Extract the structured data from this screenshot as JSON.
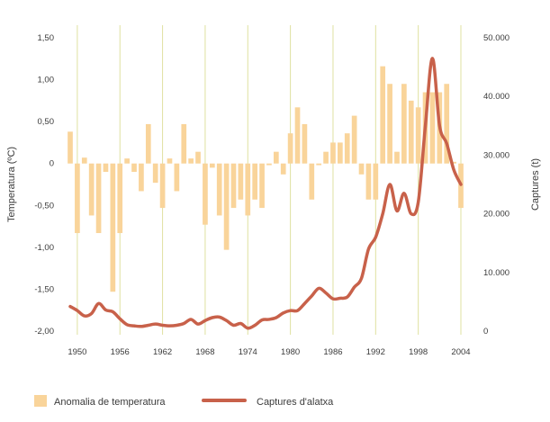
{
  "chart_data": {
    "type": "bar+line",
    "x": [
      1949,
      1950,
      1951,
      1952,
      1953,
      1954,
      1955,
      1956,
      1957,
      1958,
      1959,
      1960,
      1961,
      1962,
      1963,
      1964,
      1965,
      1966,
      1967,
      1968,
      1969,
      1970,
      1971,
      1972,
      1973,
      1974,
      1975,
      1976,
      1977,
      1978,
      1979,
      1980,
      1981,
      1982,
      1983,
      1984,
      1985,
      1986,
      1987,
      1988,
      1989,
      1990,
      1991,
      1992,
      1993,
      1994,
      1995,
      1996,
      1997,
      1998,
      1999,
      2000,
      2001,
      2002,
      2003,
      2004
    ],
    "x_ticks": [
      "1950",
      "1956",
      "1962",
      "1968",
      "1974",
      "1980",
      "1986",
      "1992",
      "1998",
      "2004"
    ],
    "series": [
      {
        "name": "Anomalia de temperatura",
        "kind": "bar",
        "axis": "left",
        "color": "#f9d49a",
        "values": [
          0.38,
          -0.83,
          0.07,
          -0.62,
          -0.83,
          -0.1,
          -1.53,
          -0.83,
          0.06,
          -0.1,
          -0.33,
          0.47,
          -0.23,
          -0.53,
          0.06,
          -0.33,
          0.47,
          0.06,
          0.14,
          -0.73,
          -0.05,
          -0.62,
          -1.03,
          -0.53,
          -0.43,
          -0.62,
          -0.43,
          -0.53,
          -0.02,
          0.14,
          -0.13,
          0.36,
          0.67,
          0.47,
          -0.43,
          -0.02,
          0.14,
          0.25,
          0.25,
          0.36,
          0.57,
          -0.13,
          -0.43,
          -0.43,
          1.16,
          0.95,
          0.14,
          0.95,
          0.75,
          0.67,
          0.85,
          0.85,
          0.85,
          0.95,
          0.02,
          -0.53
        ]
      },
      {
        "name": "Captures d'alatxa",
        "kind": "line",
        "axis": "right",
        "color": "#c8614a",
        "values": [
          4200,
          3500,
          2600,
          3000,
          4700,
          3600,
          3300,
          2100,
          1100,
          900,
          800,
          1000,
          1200,
          1000,
          900,
          1000,
          1300,
          2000,
          1200,
          1800,
          2300,
          2400,
          1800,
          1000,
          1300,
          500,
          1000,
          1900,
          2000,
          2300,
          3100,
          3500,
          3500,
          4700,
          6000,
          7300,
          6500,
          5500,
          5600,
          5800,
          7500,
          9000,
          14000,
          16000,
          20000,
          25000,
          20500,
          23500,
          20000,
          22000,
          35000,
          46500,
          35000,
          32000,
          27500,
          25000
        ]
      }
    ],
    "y_left": {
      "title": "Temperatura (ºC)",
      "ticks": [
        "1,50",
        "1,00",
        "0,50",
        "0",
        "-0,50",
        "-1,00",
        "-1,50",
        "-2,00"
      ],
      "range": [
        -2.0,
        1.5
      ]
    },
    "y_right": {
      "title": "Captures (t)",
      "ticks": [
        "50.000",
        "40.000",
        "30.000",
        "20.000",
        "10.000",
        "0"
      ],
      "range": [
        0,
        50000
      ]
    },
    "grid": "vertical lines at x ticks",
    "legend_position": "bottom",
    "colors": {
      "bars": "#f9d49a",
      "line": "#c8614a",
      "grid": "#dfe1a0"
    }
  }
}
